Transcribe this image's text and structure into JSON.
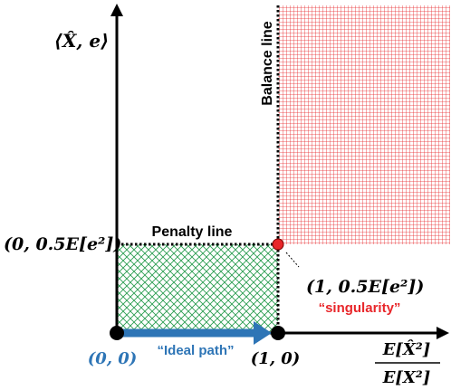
{
  "y_axis_label": "⟨X̂, e⟩",
  "x_axis_label": {
    "numerator": "E[X̂²]",
    "denominator": "E[X²]"
  },
  "balance_line_label": "Balance line",
  "penalty_line_label": "Penalty line",
  "y_tick_label": "(0, 0.5E[e²])",
  "singularity_point_label": "(1, 0.5E[e²])",
  "singularity_note": "“singularity”",
  "origin_label": "(0, 0)",
  "x_tick_label": "(1, 0)",
  "ideal_path_label": "“Ideal path”",
  "colors": {
    "axis": "#000000",
    "green_region": "#2a9d50",
    "red_region": "#e8262a",
    "blue": "#2e75b6",
    "singularity": "#e8262a"
  }
}
